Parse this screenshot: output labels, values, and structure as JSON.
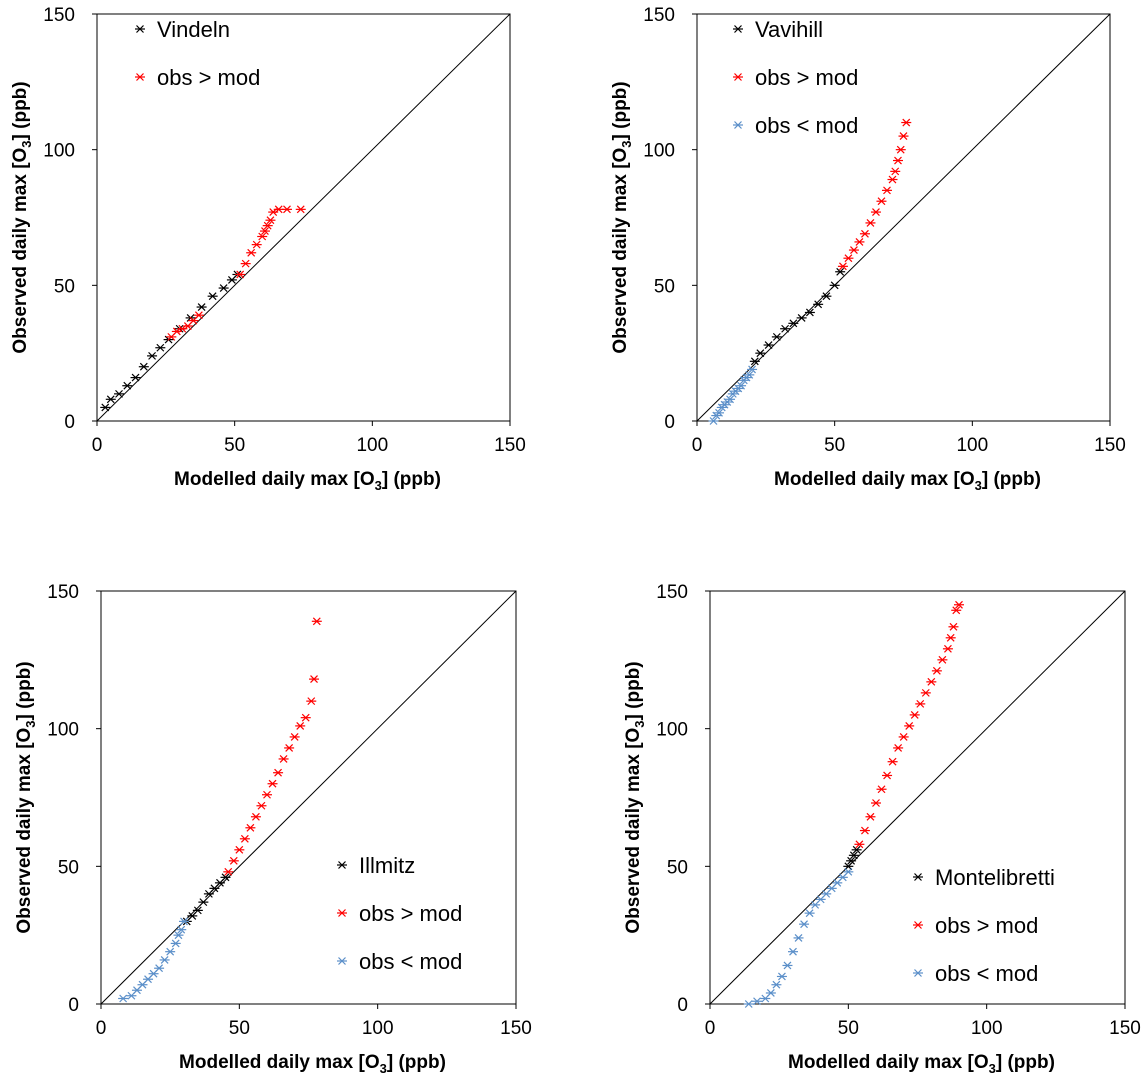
{
  "chart_data": [
    {
      "type": "scatter",
      "xlabel": "Modelled daily max [O3] (ppb)",
      "ylabel": "Observed daily max [O3] (ppb)",
      "xlim": [
        0,
        150
      ],
      "ylim": [
        0,
        150
      ],
      "xticks": [
        "0",
        "50",
        "100",
        "150"
      ],
      "yticks": [
        "0",
        "50",
        "100",
        "150"
      ],
      "reference_line": "1:1",
      "legend_position": "top-left",
      "grid": false,
      "series": [
        {
          "name": "Vindeln",
          "color": "#000000",
          "x": [
            3,
            5,
            8,
            11,
            14,
            17,
            20,
            23,
            26,
            30,
            34,
            38,
            42,
            46,
            49,
            51
          ],
          "y": [
            5,
            8,
            10,
            13,
            16,
            20,
            24,
            27,
            30,
            34,
            38,
            42,
            46,
            49,
            52,
            54
          ]
        },
        {
          "name": "obs > mod",
          "color": "#ff0000",
          "x": [
            27,
            29,
            31,
            33,
            35,
            37,
            52,
            54,
            56,
            58,
            60,
            61,
            62,
            63,
            64,
            66,
            69,
            74
          ],
          "y": [
            31,
            33,
            34,
            35,
            37,
            39,
            54,
            58,
            62,
            65,
            68,
            70,
            72,
            74,
            77,
            78,
            78,
            78
          ]
        }
      ]
    },
    {
      "type": "scatter",
      "xlabel": "Modelled daily max [O3] (ppb)",
      "ylabel": "Observed daily max [O3] (ppb)",
      "xlim": [
        0,
        150
      ],
      "ylim": [
        0,
        150
      ],
      "xticks": [
        "0",
        "50",
        "100",
        "150"
      ],
      "yticks": [
        "0",
        "50",
        "100",
        "150"
      ],
      "reference_line": "1:1",
      "legend_position": "top-left",
      "grid": false,
      "series": [
        {
          "name": "Vavihill",
          "color": "#000000",
          "x": [
            21,
            23,
            26,
            29,
            32,
            35,
            38,
            41,
            44,
            47,
            50,
            52
          ],
          "y": [
            22,
            25,
            28,
            31,
            34,
            36,
            38,
            40,
            43,
            46,
            50,
            55
          ]
        },
        {
          "name": "obs > mod",
          "color": "#ff0000",
          "x": [
            53,
            55,
            57,
            59,
            61,
            63,
            65,
            67,
            69,
            71,
            72,
            73,
            74,
            75,
            76
          ],
          "y": [
            57,
            60,
            63,
            66,
            69,
            73,
            77,
            81,
            85,
            89,
            92,
            96,
            100,
            105,
            110
          ]
        },
        {
          "name": "obs < mod",
          "color": "#5b8fc9",
          "x": [
            6,
            7,
            8,
            9,
            10,
            11,
            12,
            13,
            14,
            15,
            16,
            17,
            18,
            19,
            20
          ],
          "y": [
            0,
            2,
            3,
            5,
            6,
            7,
            8,
            10,
            11,
            12,
            13,
            15,
            16,
            17,
            19
          ]
        }
      ]
    },
    {
      "type": "scatter",
      "xlabel": "Modelled daily max [O3] (ppb)",
      "ylabel": "Observed daily max [O3] (ppb)",
      "xlim": [
        0,
        150
      ],
      "ylim": [
        0,
        150
      ],
      "xticks": [
        "0",
        "50",
        "100",
        "150"
      ],
      "yticks": [
        "0",
        "50",
        "100",
        "150"
      ],
      "reference_line": "1:1",
      "legend_position": "bottom-right",
      "grid": false,
      "series": [
        {
          "name": "Illmitz",
          "color": "#000000",
          "x": [
            31,
            33,
            35,
            37,
            39,
            41,
            43,
            45
          ],
          "y": [
            30,
            32,
            34,
            37,
            40,
            42,
            44,
            46
          ]
        },
        {
          "name": "obs > mod",
          "color": "#ff0000",
          "x": [
            46,
            48,
            50,
            52,
            54,
            56,
            58,
            60,
            62,
            64,
            66,
            68,
            70,
            72,
            74,
            76,
            77,
            78
          ],
          "y": [
            48,
            52,
            56,
            60,
            64,
            68,
            72,
            76,
            80,
            84,
            89,
            93,
            97,
            101,
            104,
            110,
            118,
            139
          ]
        },
        {
          "name": "obs < mod",
          "color": "#5b8fc9",
          "x": [
            8,
            11,
            13,
            15,
            17,
            19,
            21,
            23,
            25,
            27,
            28,
            29,
            30
          ],
          "y": [
            2,
            3,
            5,
            7,
            9,
            11,
            13,
            16,
            19,
            22,
            25,
            27,
            30
          ]
        }
      ]
    },
    {
      "type": "scatter",
      "xlabel": "Modelled daily max [O3] (ppb)",
      "ylabel": "Observed daily max [O3] (ppb)",
      "xlim": [
        0,
        150
      ],
      "ylim": [
        0,
        150
      ],
      "xticks": [
        "0",
        "50",
        "100",
        "150"
      ],
      "yticks": [
        "0",
        "50",
        "100",
        "150"
      ],
      "reference_line": "1:1",
      "legend_position": "bottom-right",
      "grid": false,
      "series": [
        {
          "name": "Montelibretti",
          "color": "#000000",
          "x": [
            50,
            51,
            52,
            53
          ],
          "y": [
            50,
            52,
            54,
            56
          ]
        },
        {
          "name": "obs > mod",
          "color": "#ff0000",
          "x": [
            54,
            56,
            58,
            60,
            62,
            64,
            66,
            68,
            70,
            72,
            74,
            76,
            78,
            80,
            82,
            84,
            86,
            87,
            88,
            89,
            90
          ],
          "y": [
            58,
            63,
            68,
            73,
            78,
            83,
            88,
            93,
            97,
            101,
            105,
            109,
            113,
            117,
            121,
            125,
            129,
            133,
            137,
            143,
            145
          ]
        },
        {
          "name": "obs < mod",
          "color": "#5b8fc9",
          "x": [
            14,
            17,
            20,
            22,
            24,
            26,
            28,
            30,
            32,
            34,
            36,
            38,
            40,
            42,
            44,
            46,
            48,
            50
          ],
          "y": [
            0,
            1,
            2,
            4,
            7,
            10,
            14,
            19,
            24,
            29,
            33,
            36,
            38,
            40,
            42,
            44,
            46,
            48
          ]
        }
      ]
    }
  ]
}
